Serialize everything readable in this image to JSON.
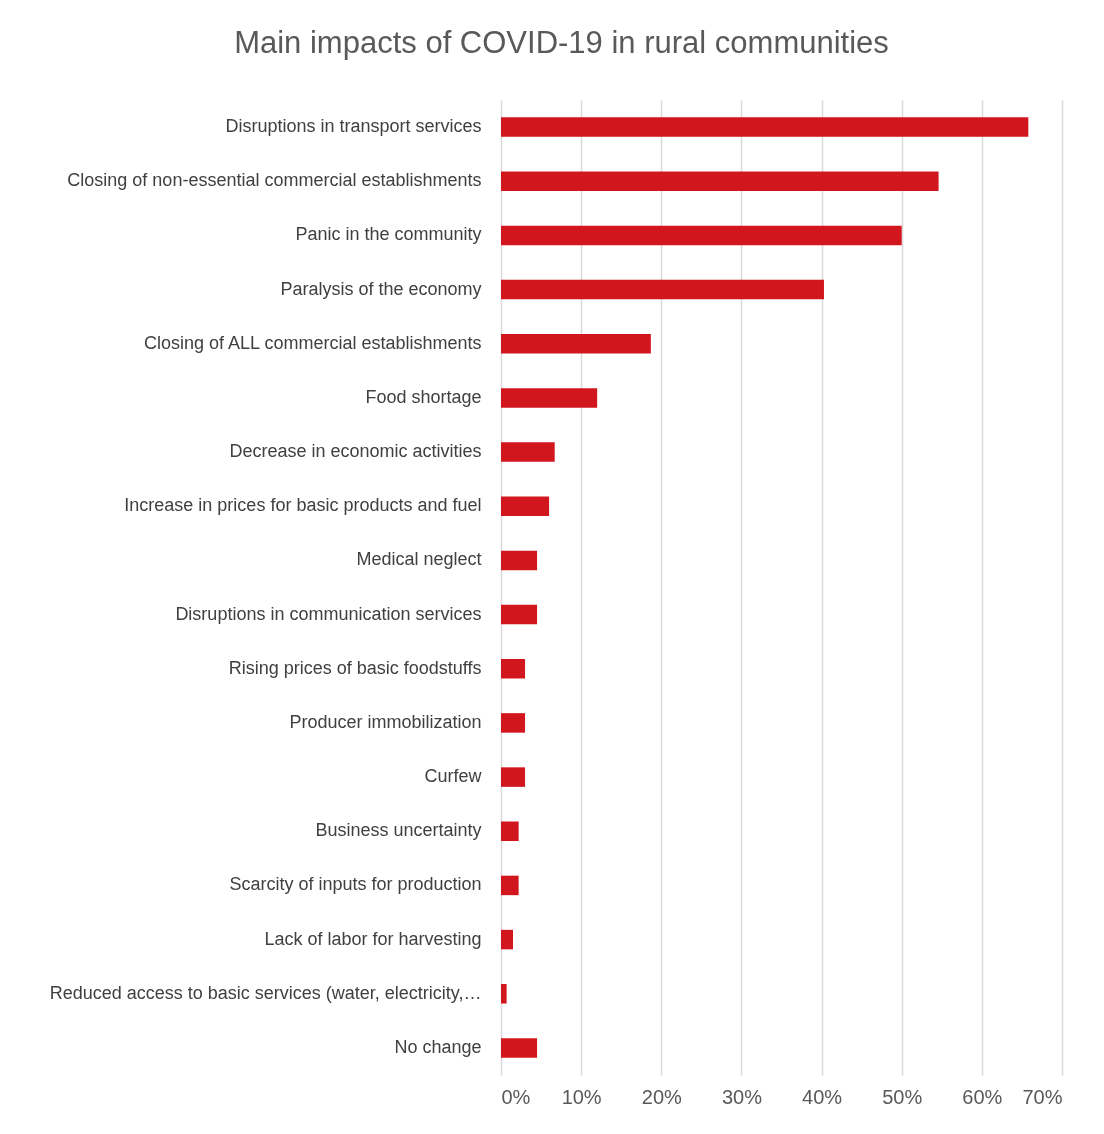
{
  "chart_data": {
    "type": "bar",
    "orientation": "horizontal",
    "title": "Main impacts of COVID-19 in rural communities",
    "categories": [
      "Disruptions in transport services",
      "Closing of non-essential commercial establishments",
      "Panic in the community",
      "Paralysis of the economy",
      "Closing of ALL commercial establishments",
      "Food shortage",
      "Decrease in economic activities",
      "Increase in prices for basic products and fuel",
      "Medical neglect",
      "Disruptions in communication services",
      "Rising prices of basic foodstuffs",
      "Producer immobilization",
      "Curfew",
      "Business uncertainty ",
      "Scarcity of inputs for production",
      "Lack of labor for harvesting ",
      "Reduced access to basic services (water, electricity,…",
      "No change"
    ],
    "values": [
      65.8,
      54.6,
      50.0,
      40.3,
      18.7,
      12.0,
      6.7,
      6.0,
      4.5,
      4.5,
      3.0,
      3.0,
      3.0,
      2.2,
      2.2,
      1.5,
      0.7,
      4.5
    ],
    "color": "#d2161e",
    "xlim": [
      0,
      70
    ],
    "xticks": [
      {
        "value": 0,
        "label": "0%"
      },
      {
        "value": 10,
        "label": "10%"
      },
      {
        "value": 20,
        "label": "20%"
      },
      {
        "value": 30,
        "label": "30%"
      },
      {
        "value": 40,
        "label": "40%"
      },
      {
        "value": 50,
        "label": "50%"
      },
      {
        "value": 60,
        "label": "60%"
      },
      {
        "value": 70,
        "label": "70%"
      }
    ],
    "grid": "x"
  }
}
